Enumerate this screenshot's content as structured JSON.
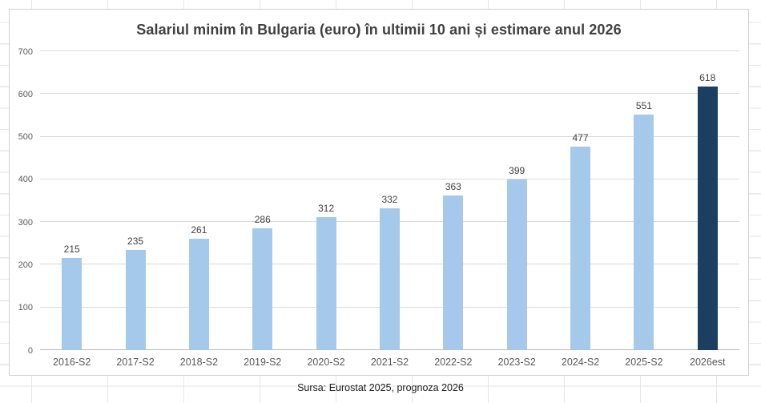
{
  "chart": {
    "title": "Salariul minim în Bulgaria (euro) în ultimii 10 ani și estimare anul 2026",
    "source": "Sursa: Eurostat 2025, prognoza 2026"
  },
  "chart_data": {
    "type": "bar",
    "title": "Salariul minim în Bulgaria (euro) în ultimii 10 ani și estimare anul 2026",
    "categories": [
      "2016-S2",
      "2017-S2",
      "2018-S2",
      "2019-S2",
      "2020-S2",
      "2021-S2",
      "2022-S2",
      "2023-S2",
      "2024-S2",
      "2025-S2",
      "2026est"
    ],
    "values": [
      215,
      235,
      261,
      286,
      312,
      332,
      363,
      399,
      477,
      551,
      618
    ],
    "data_labels": true,
    "xlabel": "",
    "ylabel": "",
    "ylim": [
      0,
      700
    ],
    "ytick_step": 100,
    "grid": "horizontal",
    "legend": "none",
    "bar_color": "#A4C9EA",
    "highlight_bar_index": 10,
    "highlight_color": "#1C3F61",
    "source_note": "Sursa: Eurostat 2025, prognoza 2026"
  }
}
